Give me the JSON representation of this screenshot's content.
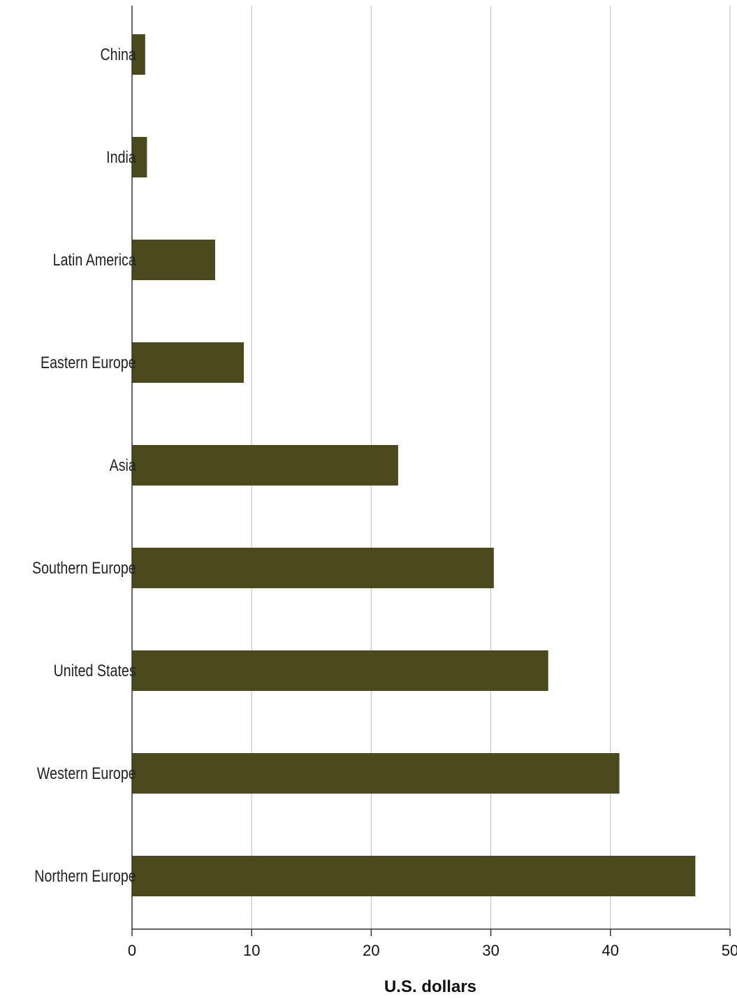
{
  "chart_data": {
    "type": "bar",
    "orientation": "horizontal",
    "categories": [
      "China",
      "India",
      "Latin America",
      "Eastern Europe",
      "Asia",
      "Southern Europe",
      "United States",
      "Western Europe",
      "Northern Europe"
    ],
    "values": [
      1.1,
      1.25,
      6.95,
      9.35,
      22.25,
      30.25,
      34.8,
      40.75,
      47.1
    ],
    "title": "",
    "xlabel": "U.S. dollars",
    "ylabel": "",
    "xlim": [
      0,
      50
    ],
    "xticks": [
      0,
      10,
      20,
      30,
      40,
      50
    ],
    "grid": "vertical",
    "bar_color": "#4a4a1c",
    "grid_color": "#bbbbbb",
    "axis_color": "#333333"
  }
}
